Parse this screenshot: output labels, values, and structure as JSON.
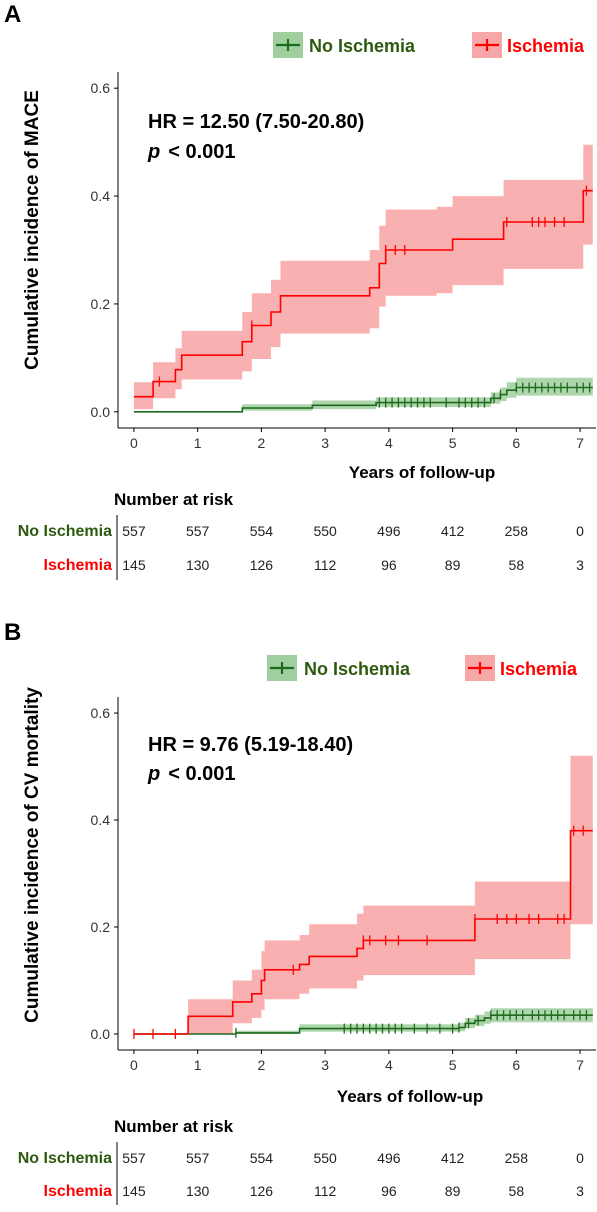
{
  "colors": {
    "no_ischemia": "#1e6b1e",
    "no_ischemia_band": "#9fcf9f",
    "ischemia": "#ff0000",
    "ischemia_band": "#f7a7a7",
    "no_ischemia_label": "#2e5a10",
    "ischemia_label": "#ff0000"
  },
  "chart_data": [
    {
      "type": "line",
      "panel_label": "A",
      "ylabel": "Cumulative incidence of MACE",
      "xlabel": "Years of follow-up",
      "xlim": [
        -0.25,
        7.25
      ],
      "ylim": [
        -0.03,
        0.63
      ],
      "x_ticks": [
        "0",
        "1",
        "2",
        "3",
        "4",
        "5",
        "6",
        "7"
      ],
      "y_ticks": [
        "0.0",
        "0.2",
        "0.4",
        "0.6"
      ],
      "legend": [
        "No Ischemia",
        "Ischemia"
      ],
      "legend_position": "top-right",
      "annotation_hr": "HR = 12.50 (7.50-20.80)",
      "annotation_p_symbol": "p",
      "annotation_p_value": "< 0.001",
      "series": [
        {
          "name": "No Ischemia",
          "steps": [
            [
              0,
              0.0
            ],
            [
              1.7,
              0.007
            ],
            [
              2.8,
              0.012
            ],
            [
              3.8,
              0.017
            ],
            [
              5.6,
              0.025
            ],
            [
              5.75,
              0.032
            ],
            [
              5.85,
              0.04
            ],
            [
              6.0,
              0.045
            ]
          ],
          "lower": [
            [
              0,
              0.0
            ],
            [
              1.7,
              0.002
            ],
            [
              2.8,
              0.005
            ],
            [
              3.8,
              0.009
            ],
            [
              5.6,
              0.015
            ],
            [
              5.75,
              0.02
            ],
            [
              5.85,
              0.026
            ],
            [
              6.0,
              0.03
            ]
          ],
          "upper": [
            [
              0,
              0.0
            ],
            [
              1.7,
              0.014
            ],
            [
              2.8,
              0.021
            ],
            [
              3.8,
              0.027
            ],
            [
              5.6,
              0.036
            ],
            [
              5.75,
              0.045
            ],
            [
              5.85,
              0.055
            ],
            [
              6.0,
              0.063
            ]
          ],
          "censor": [
            3.85,
            3.95,
            4.05,
            4.15,
            4.25,
            4.35,
            4.45,
            4.55,
            4.65,
            4.9,
            5.1,
            5.2,
            5.3,
            5.4,
            5.5,
            5.65,
            5.75,
            6.0,
            6.1,
            6.2,
            6.3,
            6.4,
            6.5,
            6.6,
            6.7,
            6.8,
            6.95,
            7.05,
            7.15
          ]
        },
        {
          "name": "Ischemia",
          "steps": [
            [
              0,
              0.028
            ],
            [
              0.3,
              0.056
            ],
            [
              0.65,
              0.078
            ],
            [
              0.75,
              0.105
            ],
            [
              1.2,
              0.105
            ],
            [
              1.7,
              0.13
            ],
            [
              1.85,
              0.16
            ],
            [
              2.15,
              0.185
            ],
            [
              2.3,
              0.215
            ],
            [
              3.0,
              0.215
            ],
            [
              3.7,
              0.23
            ],
            [
              3.85,
              0.275
            ],
            [
              3.95,
              0.3
            ],
            [
              4.35,
              0.3
            ],
            [
              4.75,
              0.3
            ],
            [
              5.0,
              0.32
            ],
            [
              5.3,
              0.32
            ],
            [
              5.8,
              0.352
            ],
            [
              7.05,
              0.41
            ]
          ],
          "lower": [
            [
              0,
              0.005
            ],
            [
              0.3,
              0.025
            ],
            [
              0.65,
              0.042
            ],
            [
              0.75,
              0.06
            ],
            [
              1.7,
              0.075
            ],
            [
              1.85,
              0.098
            ],
            [
              2.15,
              0.12
            ],
            [
              2.3,
              0.145
            ],
            [
              3.7,
              0.155
            ],
            [
              3.85,
              0.195
            ],
            [
              3.95,
              0.215
            ],
            [
              4.75,
              0.22
            ],
            [
              5.0,
              0.235
            ],
            [
              5.8,
              0.265
            ],
            [
              7.05,
              0.31
            ]
          ],
          "upper": [
            [
              0,
              0.055
            ],
            [
              0.3,
              0.092
            ],
            [
              0.65,
              0.118
            ],
            [
              0.75,
              0.15
            ],
            [
              1.7,
              0.185
            ],
            [
              1.85,
              0.22
            ],
            [
              2.15,
              0.245
            ],
            [
              2.3,
              0.28
            ],
            [
              3.7,
              0.3
            ],
            [
              3.85,
              0.345
            ],
            [
              3.95,
              0.375
            ],
            [
              4.75,
              0.38
            ],
            [
              5.0,
              0.4
            ],
            [
              5.8,
              0.43
            ],
            [
              7.05,
              0.495
            ]
          ],
          "censor": [
            0.4,
            1.85,
            3.95,
            4.1,
            4.25,
            5.85,
            6.25,
            6.35,
            6.45,
            6.6,
            6.75,
            7.1
          ]
        }
      ],
      "risk_table": {
        "title": "Number at risk",
        "rows": [
          {
            "name": "No Ischemia",
            "values": [
              "557",
              "557",
              "554",
              "550",
              "496",
              "412",
              "258",
              "0"
            ]
          },
          {
            "name": "Ischemia",
            "values": [
              "145",
              "130",
              "126",
              "112",
              "96",
              "89",
              "58",
              "3"
            ]
          }
        ]
      }
    },
    {
      "type": "line",
      "panel_label": "B",
      "ylabel": "Cumulative incidence of CV mortality",
      "xlabel": "Years of follow-up",
      "xlim": [
        -0.25,
        7.25
      ],
      "ylim": [
        -0.03,
        0.63
      ],
      "x_ticks": [
        "0",
        "1",
        "2",
        "3",
        "4",
        "5",
        "6",
        "7"
      ],
      "y_ticks": [
        "0.0",
        "0.2",
        "0.4",
        "0.6"
      ],
      "legend": [
        "No Ischemia",
        "Ischemia"
      ],
      "legend_position": "top-right",
      "annotation_hr": "HR = 9.76 (5.19-18.40)",
      "annotation_p_symbol": "p",
      "annotation_p_value": "< 0.001",
      "series": [
        {
          "name": "No Ischemia",
          "steps": [
            [
              0,
              0.0
            ],
            [
              1.6,
              0.002
            ],
            [
              2.6,
              0.01
            ],
            [
              5.1,
              0.012
            ],
            [
              5.2,
              0.02
            ],
            [
              5.35,
              0.025
            ],
            [
              5.5,
              0.03
            ],
            [
              5.6,
              0.035
            ]
          ],
          "lower": [
            [
              0,
              0.0
            ],
            [
              1.6,
              0.0
            ],
            [
              2.6,
              0.004
            ],
            [
              5.1,
              0.005
            ],
            [
              5.2,
              0.011
            ],
            [
              5.35,
              0.015
            ],
            [
              5.5,
              0.019
            ],
            [
              5.6,
              0.022
            ]
          ],
          "upper": [
            [
              0,
              0.0
            ],
            [
              1.6,
              0.006
            ],
            [
              2.6,
              0.018
            ],
            [
              5.1,
              0.021
            ],
            [
              5.2,
              0.03
            ],
            [
              5.35,
              0.036
            ],
            [
              5.5,
              0.042
            ],
            [
              5.6,
              0.048
            ]
          ],
          "censor": [
            1.6,
            3.3,
            3.4,
            3.5,
            3.6,
            3.7,
            3.8,
            3.9,
            4.0,
            4.1,
            4.2,
            4.4,
            4.6,
            4.8,
            5.0,
            5.1,
            5.25,
            5.4,
            5.6,
            5.7,
            5.8,
            5.9,
            6.0,
            6.1,
            6.25,
            6.35,
            6.45,
            6.55,
            6.65,
            6.75,
            6.9,
            7.0,
            7.1
          ]
        },
        {
          "name": "Ischemia",
          "steps": [
            [
              0,
              0.0
            ],
            [
              0.85,
              0.033
            ],
            [
              1.55,
              0.06
            ],
            [
              1.85,
              0.075
            ],
            [
              2.0,
              0.1
            ],
            [
              2.05,
              0.12
            ],
            [
              2.6,
              0.13
            ],
            [
              2.75,
              0.145
            ],
            [
              3.5,
              0.16
            ],
            [
              3.6,
              0.175
            ],
            [
              4.6,
              0.175
            ],
            [
              5.35,
              0.215
            ],
            [
              6.85,
              0.38
            ]
          ],
          "lower": [
            [
              0,
              0.0
            ],
            [
              0.85,
              0.0
            ],
            [
              1.55,
              0.02
            ],
            [
              1.85,
              0.03
            ],
            [
              2.0,
              0.045
            ],
            [
              2.05,
              0.065
            ],
            [
              2.6,
              0.075
            ],
            [
              2.75,
              0.085
            ],
            [
              3.5,
              0.1
            ],
            [
              3.6,
              0.11
            ],
            [
              5.35,
              0.14
            ],
            [
              6.85,
              0.205
            ]
          ],
          "upper": [
            [
              0,
              0.0
            ],
            [
              0.85,
              0.065
            ],
            [
              1.55,
              0.1
            ],
            [
              1.85,
              0.12
            ],
            [
              2.0,
              0.155
            ],
            [
              2.05,
              0.175
            ],
            [
              2.6,
              0.185
            ],
            [
              2.75,
              0.205
            ],
            [
              3.5,
              0.225
            ],
            [
              3.6,
              0.24
            ],
            [
              5.35,
              0.285
            ],
            [
              6.85,
              0.52
            ]
          ],
          "censor": [
            0.0,
            0.3,
            0.65,
            2.5,
            3.6,
            3.7,
            3.95,
            4.15,
            4.6,
            5.35,
            5.7,
            5.85,
            6.0,
            6.2,
            6.35,
            6.65,
            6.75,
            6.9,
            7.05
          ]
        }
      ],
      "risk_table": {
        "title": "Number at risk",
        "rows": [
          {
            "name": "No Ischemia",
            "values": [
              "557",
              "557",
              "554",
              "550",
              "496",
              "412",
              "258",
              "0"
            ]
          },
          {
            "name": "Ischemia",
            "values": [
              "145",
              "130",
              "126",
              "112",
              "96",
              "89",
              "58",
              "3"
            ]
          }
        ]
      }
    }
  ]
}
